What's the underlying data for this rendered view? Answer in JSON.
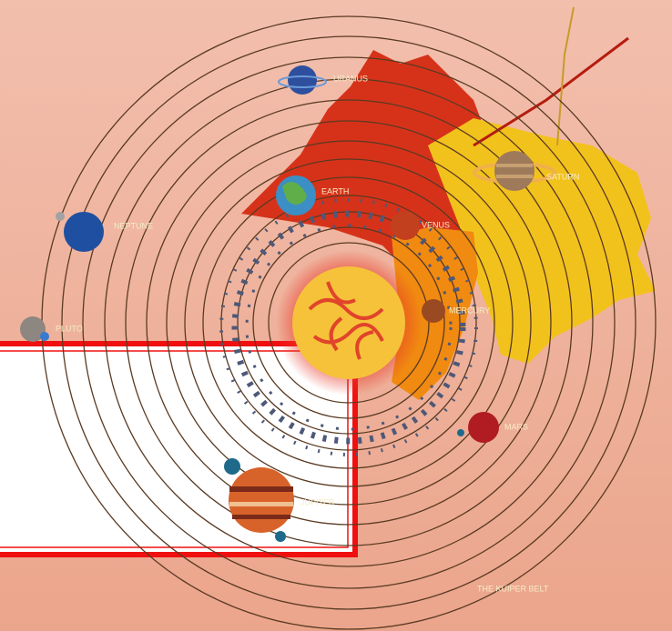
{
  "planets": [
    {
      "label": "URANUS"
    },
    {
      "label": "EARTH"
    },
    {
      "label": "VENUS"
    },
    {
      "label": "NEPTUNE"
    },
    {
      "label": "SATURN"
    },
    {
      "label": "MERCURY"
    },
    {
      "label": "PLUTO"
    },
    {
      "label": "MARS"
    },
    {
      "label": "JUPITER"
    }
  ],
  "kuiper_belt": "THE KUIPER BELT"
}
